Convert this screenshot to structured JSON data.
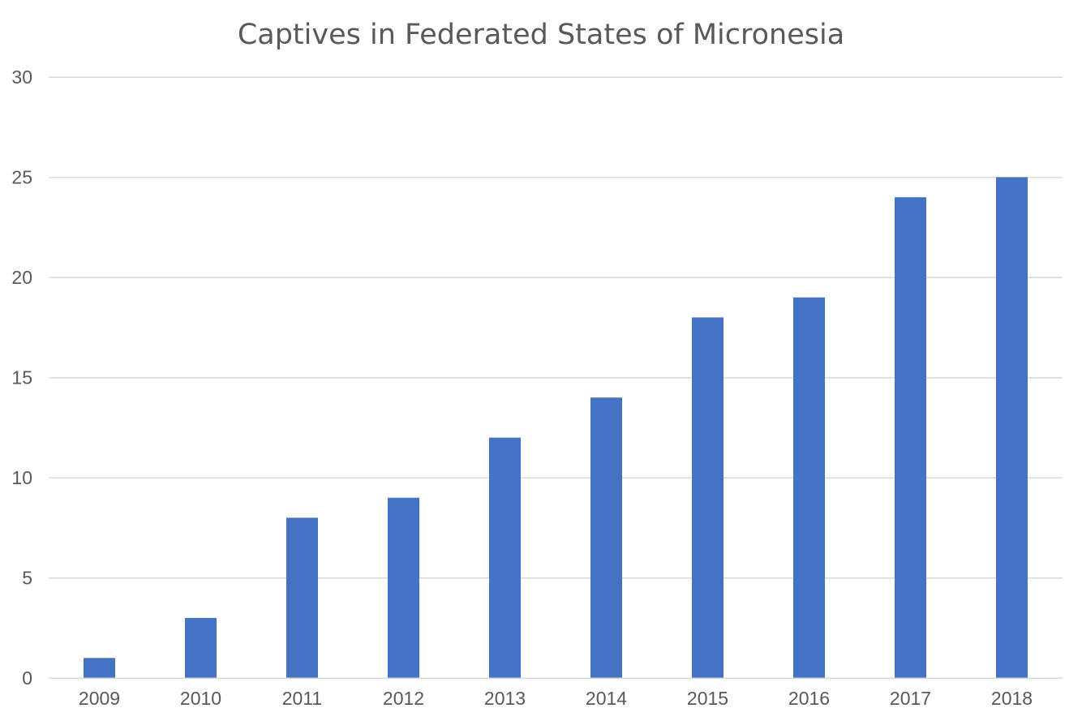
{
  "chart_data": {
    "type": "bar",
    "title": "Captives in Federated States of Micronesia",
    "xlabel": "",
    "ylabel": "",
    "categories": [
      "2009",
      "2010",
      "2011",
      "2012",
      "2013",
      "2014",
      "2015",
      "2016",
      "2017",
      "2018"
    ],
    "values": [
      1,
      3,
      8,
      9,
      12,
      14,
      18,
      19,
      24,
      25
    ],
    "ylim": [
      0,
      30
    ],
    "yticks": [
      "0",
      "5",
      "10",
      "15",
      "20",
      "25",
      "30"
    ],
    "grid": true,
    "legend": "none",
    "colors": {
      "bar": "#4472c4",
      "grid": "#d9d9d9",
      "text": "#595959"
    }
  }
}
